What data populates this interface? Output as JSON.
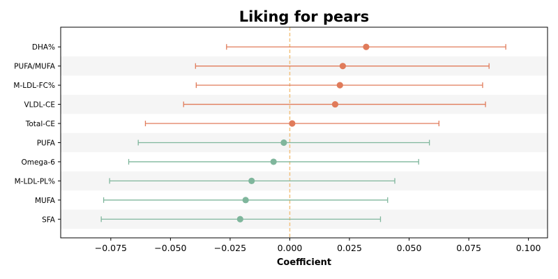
{
  "chart_data": {
    "type": "forest",
    "title": "Liking for pears",
    "xlabel": "Coefficient",
    "ylabel": "",
    "xlim": [
      -0.096,
      0.108
    ],
    "xticks": [
      -0.075,
      -0.05,
      -0.025,
      0.0,
      0.025,
      0.05,
      0.075,
      0.1
    ],
    "xtick_labels": [
      "−0.075",
      "−0.050",
      "−0.025",
      "0.000",
      "0.025",
      "0.050",
      "0.075",
      "0.100"
    ],
    "reference_line": 0.0,
    "grid": false,
    "colors": {
      "positive": "#e07b5a",
      "negative": "#7fb69c",
      "reference": "#f2c27e",
      "band": "#f5f5f5"
    },
    "rows": [
      {
        "label": "DHA%",
        "estimate": 0.032,
        "ci_low": -0.0265,
        "ci_high": 0.0905,
        "group": "positive"
      },
      {
        "label": "PUFA/MUFA",
        "estimate": 0.0222,
        "ci_low": -0.0395,
        "ci_high": 0.0835,
        "group": "positive"
      },
      {
        "label": "M-LDL-FC%",
        "estimate": 0.021,
        "ci_low": -0.0392,
        "ci_high": 0.0808,
        "group": "positive"
      },
      {
        "label": "VLDL-CE",
        "estimate": 0.019,
        "ci_low": -0.0445,
        "ci_high": 0.082,
        "group": "positive"
      },
      {
        "label": "Total-CE",
        "estimate": 0.001,
        "ci_low": -0.0605,
        "ci_high": 0.0625,
        "group": "positive"
      },
      {
        "label": "PUFA",
        "estimate": -0.0025,
        "ci_low": -0.0635,
        "ci_high": 0.0585,
        "group": "negative"
      },
      {
        "label": "Omega-6",
        "estimate": -0.0068,
        "ci_low": -0.0675,
        "ci_high": 0.054,
        "group": "negative"
      },
      {
        "label": "M-LDL-PL%",
        "estimate": -0.016,
        "ci_low": -0.0755,
        "ci_high": 0.044,
        "group": "negative"
      },
      {
        "label": "MUFA",
        "estimate": -0.0185,
        "ci_low": -0.078,
        "ci_high": 0.041,
        "group": "negative"
      },
      {
        "label": "SFA",
        "estimate": -0.0208,
        "ci_low": -0.079,
        "ci_high": 0.038,
        "group": "negative"
      }
    ]
  }
}
